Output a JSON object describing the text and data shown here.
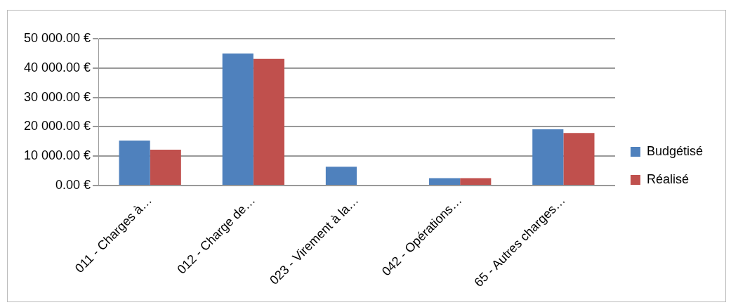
{
  "chart_data": {
    "type": "bar",
    "categories": [
      "011 - Charges à…",
      "012 - Charge de…",
      "023 - Virement à la…",
      "042 - Opérations…",
      "65 - Autres charges…"
    ],
    "series": [
      {
        "name": "Budgétisé",
        "color": "#4f81bd",
        "values": [
          15300,
          44900,
          6400,
          2500,
          19100
        ]
      },
      {
        "name": "Réalisé",
        "color": "#c0504d",
        "values": [
          12200,
          43100,
          200,
          2500,
          17900
        ]
      }
    ],
    "ylim": [
      0,
      50000
    ],
    "yticks": [
      {
        "value": 0,
        "label": "0.00 €"
      },
      {
        "value": 10000,
        "label": "10 000.00 €"
      },
      {
        "value": 20000,
        "label": "20 000.00 €"
      },
      {
        "value": 30000,
        "label": "30 000.00 €"
      },
      {
        "value": 40000,
        "label": "40 000.00 €"
      },
      {
        "value": 50000,
        "label": "50 000.00 €"
      }
    ],
    "grid": "y",
    "legend": "right"
  }
}
